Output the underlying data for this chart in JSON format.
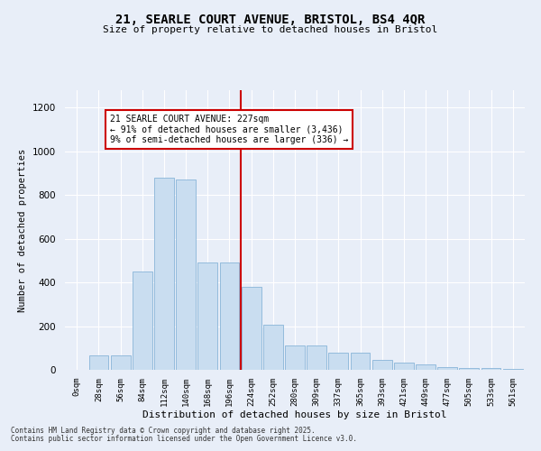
{
  "title_line1": "21, SEARLE COURT AVENUE, BRISTOL, BS4 4QR",
  "title_line2": "Size of property relative to detached houses in Bristol",
  "xlabel": "Distribution of detached houses by size in Bristol",
  "ylabel": "Number of detached properties",
  "bar_labels": [
    "0sqm",
    "28sqm",
    "56sqm",
    "84sqm",
    "112sqm",
    "140sqm",
    "168sqm",
    "196sqm",
    "224sqm",
    "252sqm",
    "280sqm",
    "309sqm",
    "337sqm",
    "365sqm",
    "393sqm",
    "421sqm",
    "449sqm",
    "477sqm",
    "505sqm",
    "533sqm",
    "561sqm"
  ],
  "bar_values": [
    2,
    65,
    65,
    450,
    880,
    870,
    490,
    490,
    380,
    205,
    110,
    110,
    80,
    80,
    45,
    35,
    25,
    12,
    8,
    10,
    5
  ],
  "bar_color": "#c9ddf0",
  "bar_edgecolor": "#88b4d8",
  "marker_color": "#cc0000",
  "annotation_title": "21 SEARLE COURT AVENUE: 227sqm",
  "annotation_line1": "← 91% of detached houses are smaller (3,436)",
  "annotation_line2": "9% of semi-detached houses are larger (336) →",
  "annotation_box_color": "#cc0000",
  "ylim": [
    0,
    1280
  ],
  "yticks": [
    0,
    200,
    400,
    600,
    800,
    1000,
    1200
  ],
  "background_color": "#e8eef8",
  "grid_color": "#ffffff",
  "footnote1": "Contains HM Land Registry data © Crown copyright and database right 2025.",
  "footnote2": "Contains public sector information licensed under the Open Government Licence v3.0."
}
